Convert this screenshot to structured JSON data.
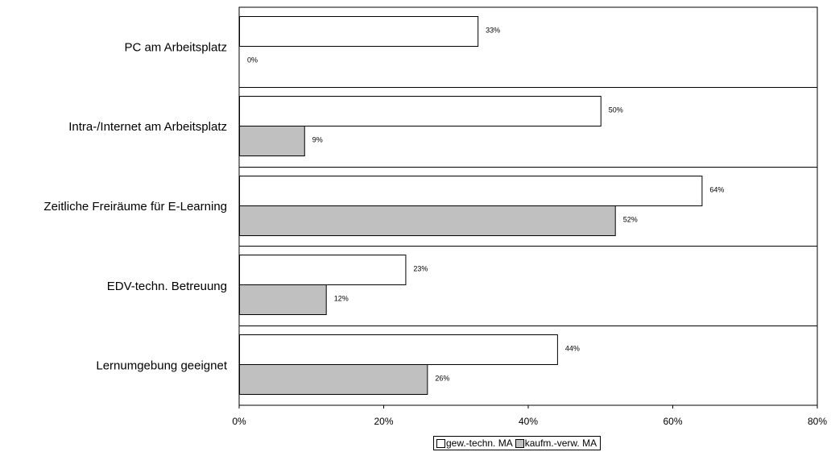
{
  "chart_data": {
    "type": "bar",
    "orientation": "horizontal",
    "categories": [
      "PC am Arbeitsplatz",
      "Intra-/Internet am Arbeitsplatz",
      "Zeitliche Freiräume für E-Learning",
      "EDV-techn. Betreuung",
      "Lernumgebung geeignet"
    ],
    "series": [
      {
        "name": "gew.-techn. MA",
        "values": [
          33,
          50,
          64,
          23,
          44
        ],
        "labels": [
          "33%",
          "50%",
          "64%",
          "23%",
          "44%"
        ],
        "color": "#ffffff"
      },
      {
        "name": "kaufm.-verw. MA",
        "values": [
          0,
          9,
          52,
          12,
          26
        ],
        "labels": [
          "0%",
          "9%",
          "52%",
          "12%",
          "26%"
        ],
        "color": "#c0c0c0"
      }
    ],
    "xlim": [
      0,
      80
    ],
    "xticks": [
      "0%",
      "20%",
      "40%",
      "60%",
      "80%"
    ],
    "title": "",
    "xlabel": "",
    "ylabel": "",
    "grid": false,
    "legend_position": "bottom"
  }
}
